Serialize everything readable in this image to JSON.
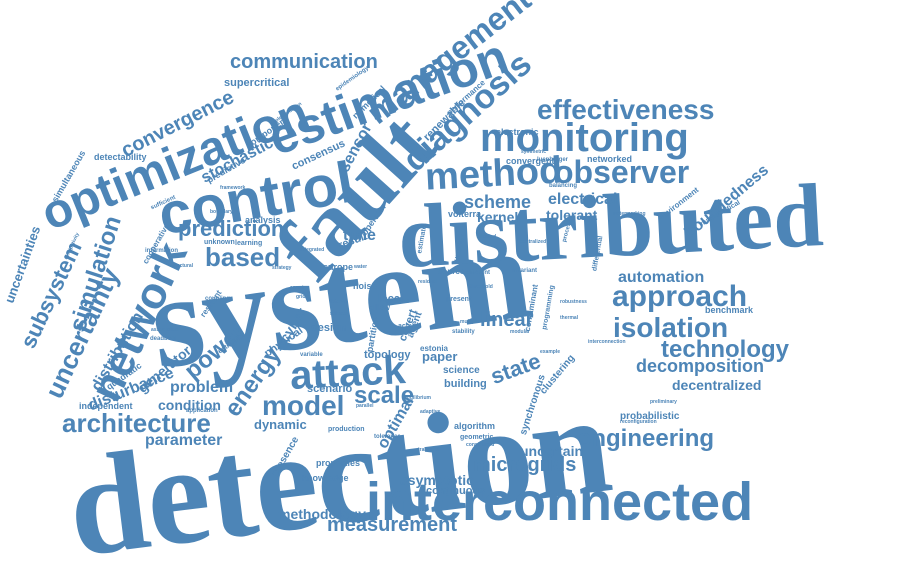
{
  "color": "#4d85b7",
  "background": "#ffffff",
  "words": {
    "detection": "detection",
    "system": "system",
    "distributed": "distributed",
    "fault": "fault",
    "interconnected": "interconnected",
    "control": "control",
    "optimization": "optimization",
    "estimation": "estimation",
    "network": "network",
    "attack": "attack",
    "method": "method",
    "observer": "observer",
    "monitoring": "monitoring",
    "diagnosis": "diagnosis",
    "management": "management",
    "effectiveness": "effectiveness",
    "approach": "approach",
    "isolation": "isolation",
    "communication": "communication",
    "convergence": "convergence",
    "architecture": "architecture",
    "model": "model",
    "based": "based",
    "prediction": "prediction",
    "engineering": "engineering",
    "microgrids": "microgrids",
    "measurement": "measurement",
    "technology": "technology",
    "decomposition": "decomposition",
    "uncertainty": "uncertainty",
    "simulation": "simulation",
    "subsystem": "subsystem",
    "power": "power",
    "energy": "energy",
    "scale": "scale",
    "state": "state",
    "linear": "linear",
    "automation": "automation",
    "boundedness": "boundedness",
    "decentralized": "decentralized",
    "uncertainties": "uncertainties",
    "distribution": "distribution",
    "disturbance": "disturbance",
    "parameter": "parameter",
    "problem": "problem",
    "condition": "condition",
    "dynamic": "dynamic",
    "generator": "generator",
    "methodology": "methodology",
    "asymptotic": "asymptotic",
    "continuous": "continuous",
    "probabilistic": "probabilistic",
    "uncertain": "uncertain",
    "optimal": "optimal",
    "scheme": "scheme",
    "kernel": "kernel",
    "electrical": "electrical",
    "tolerant": "tolerant",
    "sensor": "sensor",
    "stochastic": "stochastic",
    "predictive": "predictive",
    "component": "component",
    "supercritical": "supercritical",
    "detectability": "detectability",
    "simultaneous": "simultaneous",
    "renewable": "renewable",
    "electronic": "electronic",
    "convergent": "convergent",
    "networked": "networked",
    "consensus": "consensus",
    "performance": "performance",
    "numerical": "numerical",
    "benchmark": "benchmark",
    "time": "time",
    "result": "result",
    "scenario": "scenario",
    "design": "design",
    "topology": "topology",
    "paper": "paper",
    "building": "building",
    "science": "science",
    "synchronous": "synchronous",
    "cyber": "cyber",
    "physical": "physical",
    "quadratic": "quadratic",
    "independent": "independent",
    "presence": "presence",
    "properties": "properties",
    "knowledge": "knowledge",
    "local": "local",
    "noise": "noise",
    "analysis": "analysis",
    "volterra": "volterra",
    "environment": "environment",
    "mathematical": "mathematical",
    "clustering": "clustering",
    "contaminant": "contaminant",
    "programming": "programming",
    "algorithm": "algorithm",
    "geometric": "geometric",
    "production": "production",
    "estonia": "estonia",
    "europe": "europe",
    "partition": "partition",
    "covert": "covert",
    "agent": "agent",
    "operator": "operator",
    "cooperative": "cooperative",
    "information": "information",
    "allow": "allow",
    "active": "active",
    "present": "present",
    "source": "source",
    "different": "different",
    "function": "function",
    "estimate": "estimate",
    "differential": "differential",
    "balancing": "balancing",
    "luenberger": "luenberger",
    "symmetric": "symmetric",
    "interconnection": "interconnection",
    "application": "application",
    "resilient": "resilient",
    "coupling": "coupling",
    "estimator": "estimator",
    "sufficient": "sufficient",
    "boundary": "boundary",
    "unknown": "unknown",
    "learning": "learning",
    "watermarking": "watermarking",
    "tolerance": "tolerance",
    "variable": "variable",
    "strategy": "strategy",
    "deadbeat": "deadbeat",
    "association": "association",
    "epidemiology": "epidemiology",
    "implementation": "implementation",
    "proposed": "proposed",
    "process": "process",
    "invariant": "invariant",
    "stability": "stability",
    "water": "water",
    "failures": "failures",
    "preliminary": "preliminary",
    "constrained": "constrained",
    "transient": "transient",
    "robustness": "robustness",
    "example": "example",
    "thermal": "thermal",
    "reconfiguration": "reconfiguration",
    "equilibrium": "equilibrium",
    "integrated": "integrated",
    "framework": "framework",
    "limited": "limited",
    "centralized": "centralized",
    "residual": "residual",
    "threshold": "threshold",
    "interval": "interval",
    "parallel": "parallel",
    "multiple": "multiple",
    "modular": "modular",
    "smart": "smart",
    "grid": "grid",
    "dissipativity": "dissipativity",
    "structural": "structural",
    "adaptive": "adaptive"
  }
}
